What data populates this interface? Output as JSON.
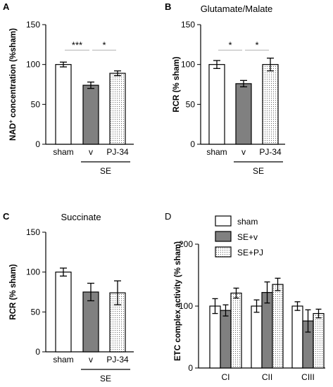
{
  "colors": {
    "sham": "#ffffff",
    "se_v": "#808080",
    "se_pj": "#dcdcdc",
    "stroke": "#000000",
    "sig_line": "#b0b0b0"
  },
  "chart_data": [
    {
      "panel": "A",
      "type": "bar",
      "title": "",
      "ylabel_pre": "NAD",
      "ylabel_sup": "+",
      "ylabel_post": " concentration (%sham)",
      "ylim": [
        0,
        150
      ],
      "yticks": [
        0,
        50,
        100,
        150
      ],
      "categories": [
        "sham",
        "v",
        "PJ-34"
      ],
      "fills": [
        "sham",
        "se_v",
        "se_pj"
      ],
      "values": [
        100,
        74,
        89
      ],
      "errors": [
        3,
        4,
        3
      ],
      "group_label": "SE",
      "significance": [
        {
          "from": 0,
          "to": 1,
          "y": 118,
          "label": "***"
        },
        {
          "from": 1,
          "to": 2,
          "y": 118,
          "label": "*"
        }
      ]
    },
    {
      "panel": "B",
      "type": "bar",
      "title": "Glutamate/Malate",
      "ylabel": "RCR (% sham)",
      "ylim": [
        0,
        150
      ],
      "yticks": [
        0,
        50,
        100,
        150
      ],
      "categories": [
        "sham",
        "v",
        "PJ-34"
      ],
      "fills": [
        "sham",
        "se_v",
        "se_pj"
      ],
      "values": [
        100,
        76,
        100
      ],
      "errors": [
        5,
        4,
        8
      ],
      "group_label": "SE",
      "significance": [
        {
          "from": 0,
          "to": 1,
          "y": 118,
          "label": "*"
        },
        {
          "from": 1,
          "to": 2,
          "y": 118,
          "label": "*"
        }
      ]
    },
    {
      "panel": "C",
      "type": "bar",
      "title": "Succinate",
      "ylabel": "RCR (% sham)",
      "ylim": [
        0,
        150
      ],
      "yticks": [
        0,
        50,
        100,
        150
      ],
      "categories": [
        "sham",
        "v",
        "PJ-34"
      ],
      "fills": [
        "sham",
        "se_v",
        "se_pj"
      ],
      "values": [
        100,
        75,
        74
      ],
      "errors": [
        5,
        11,
        15
      ],
      "group_label": "SE",
      "significance": []
    },
    {
      "panel": "D",
      "type": "bar",
      "title": "",
      "ylabel": "ETC complex activity (% sham)",
      "ylim": [
        0,
        200
      ],
      "yticks": [
        0,
        100,
        200
      ],
      "categories": [
        "CI",
        "CII",
        "CIII"
      ],
      "series": [
        {
          "name": "sham",
          "fill": "sham",
          "values": [
            100,
            100,
            100
          ],
          "errors": [
            12,
            10,
            7
          ]
        },
        {
          "name": "SE+v",
          "fill": "se_v",
          "values": [
            93,
            122,
            76
          ],
          "errors": [
            9,
            17,
            18
          ]
        },
        {
          "name": "SE+PJ",
          "fill": "se_pj",
          "values": [
            121,
            135,
            88
          ],
          "errors": [
            8,
            10,
            7
          ]
        }
      ],
      "legend_position": "top"
    }
  ]
}
